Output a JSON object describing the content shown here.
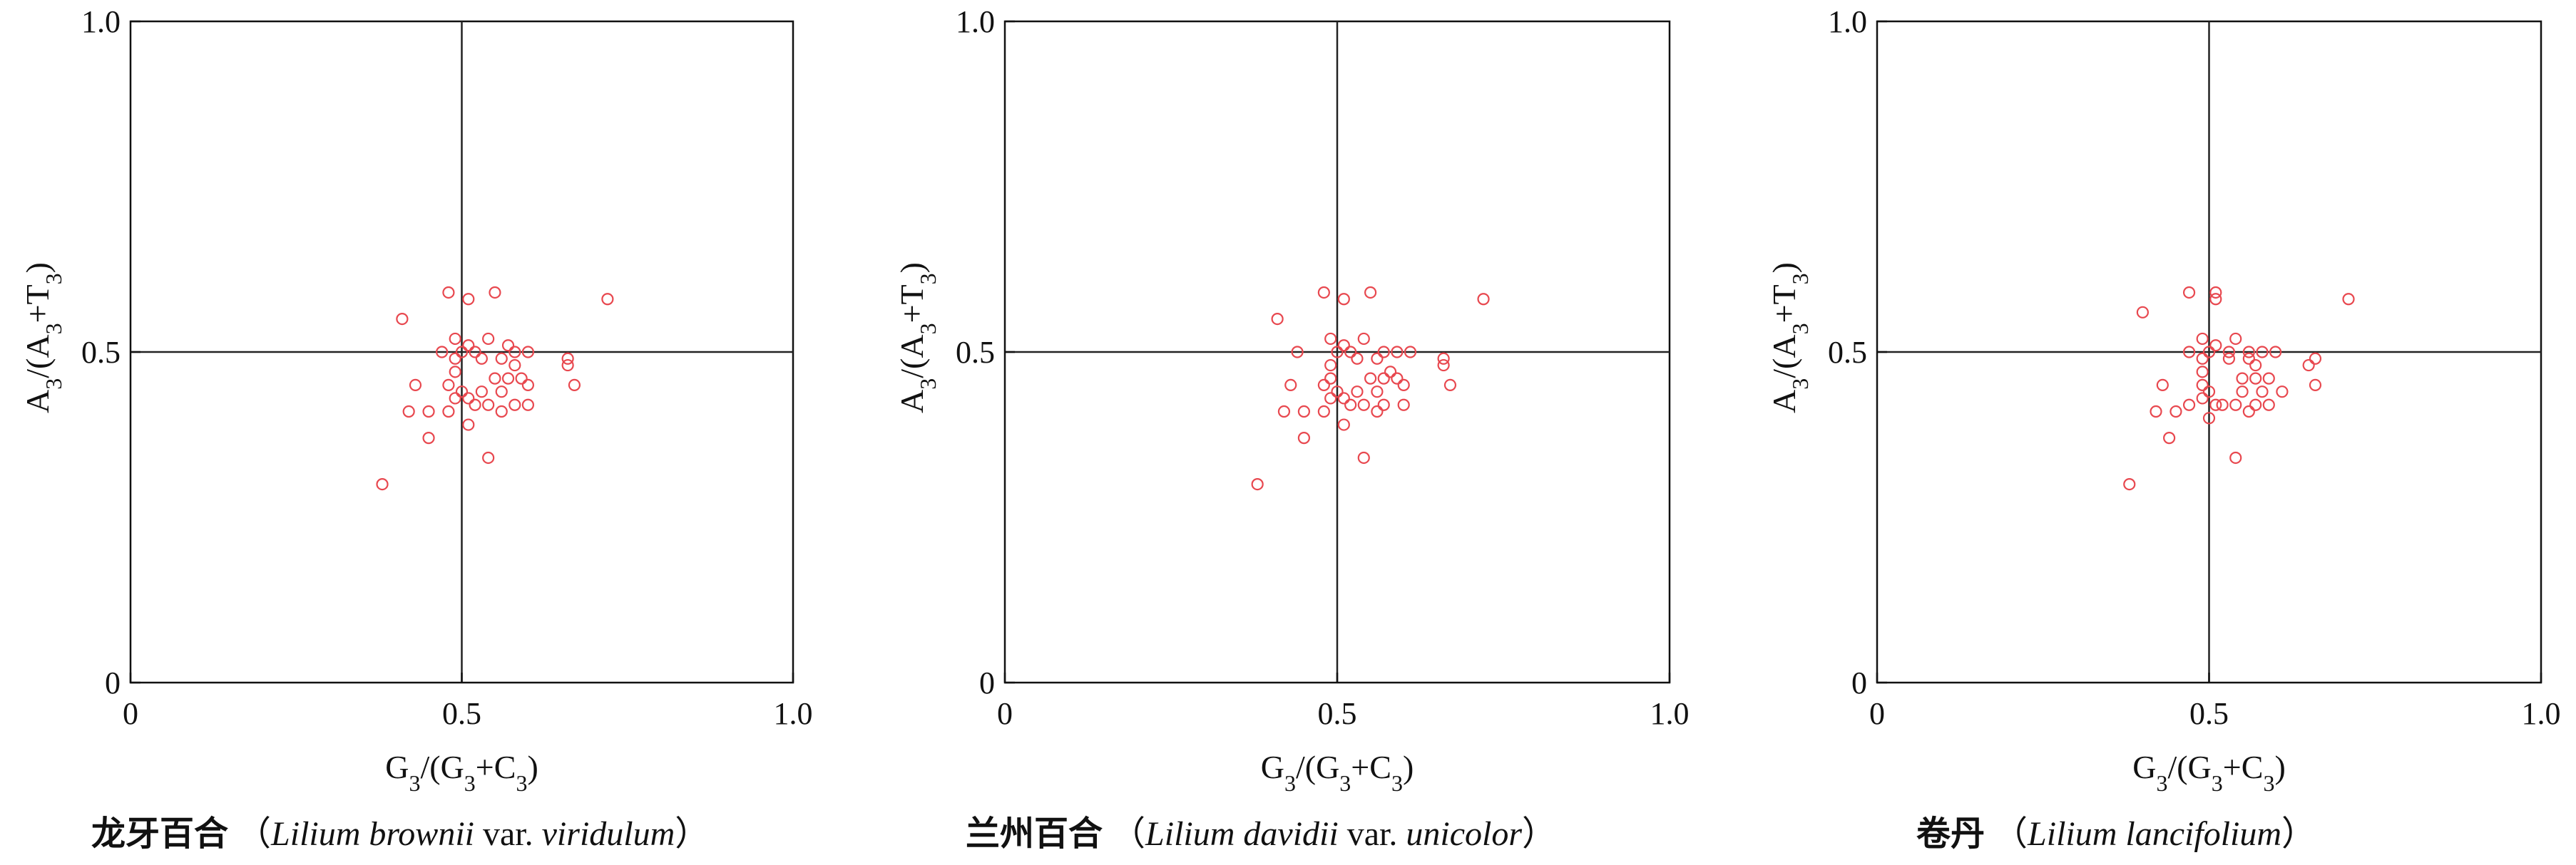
{
  "chart_data": [
    {
      "type": "scatter",
      "xlabel": "G3/(G3+C3)",
      "ylabel": "A3/(A3+T3)",
      "xlim": [
        0,
        1.0
      ],
      "ylim": [
        0,
        1.0
      ],
      "grid": false,
      "reference_lines": {
        "x": 0.5,
        "y": 0.5
      },
      "x_ticks": [
        "0",
        "0.5",
        "1.0"
      ],
      "y_ticks": [
        "0",
        "0.5",
        "1.0"
      ],
      "caption": {
        "cn": "龙牙百合",
        "open": "（",
        "latin1": "Lilium brownii",
        "mid": " var. ",
        "latin2": "viridulum",
        "close": "）"
      },
      "color": "#e8484f",
      "points": [
        [
          0.41,
          0.55
        ],
        [
          0.48,
          0.59
        ],
        [
          0.51,
          0.58
        ],
        [
          0.55,
          0.59
        ],
        [
          0.72,
          0.58
        ],
        [
          0.49,
          0.52
        ],
        [
          0.51,
          0.51
        ],
        [
          0.54,
          0.52
        ],
        [
          0.47,
          0.5
        ],
        [
          0.5,
          0.5
        ],
        [
          0.52,
          0.5
        ],
        [
          0.57,
          0.51
        ],
        [
          0.58,
          0.5
        ],
        [
          0.6,
          0.5
        ],
        [
          0.66,
          0.49
        ],
        [
          0.49,
          0.49
        ],
        [
          0.53,
          0.49
        ],
        [
          0.56,
          0.49
        ],
        [
          0.58,
          0.48
        ],
        [
          0.66,
          0.48
        ],
        [
          0.49,
          0.47
        ],
        [
          0.55,
          0.46
        ],
        [
          0.57,
          0.46
        ],
        [
          0.59,
          0.46
        ],
        [
          0.67,
          0.45
        ],
        [
          0.43,
          0.45
        ],
        [
          0.48,
          0.45
        ],
        [
          0.5,
          0.44
        ],
        [
          0.53,
          0.44
        ],
        [
          0.56,
          0.44
        ],
        [
          0.6,
          0.45
        ],
        [
          0.49,
          0.43
        ],
        [
          0.51,
          0.43
        ],
        [
          0.54,
          0.42
        ],
        [
          0.58,
          0.42
        ],
        [
          0.6,
          0.42
        ],
        [
          0.42,
          0.41
        ],
        [
          0.45,
          0.41
        ],
        [
          0.48,
          0.41
        ],
        [
          0.52,
          0.42
        ],
        [
          0.56,
          0.41
        ],
        [
          0.51,
          0.39
        ],
        [
          0.45,
          0.37
        ],
        [
          0.54,
          0.34
        ],
        [
          0.38,
          0.3
        ]
      ]
    },
    {
      "type": "scatter",
      "xlabel": "G3/(G3+C3)",
      "ylabel": "A3/(A3+T3)",
      "xlim": [
        0,
        1.0
      ],
      "ylim": [
        0,
        1.0
      ],
      "grid": false,
      "reference_lines": {
        "x": 0.5,
        "y": 0.5
      },
      "x_ticks": [
        "0",
        "0.5",
        "1.0"
      ],
      "y_ticks": [
        "0",
        "0.5",
        "1.0"
      ],
      "caption": {
        "cn": "兰州百合",
        "open": "（",
        "latin1": "Lilium davidii",
        "mid": " var. ",
        "latin2": "unicolor",
        "close": "）"
      },
      "color": "#e8484f",
      "points": [
        [
          0.41,
          0.55
        ],
        [
          0.48,
          0.59
        ],
        [
          0.51,
          0.58
        ],
        [
          0.55,
          0.59
        ],
        [
          0.72,
          0.58
        ],
        [
          0.49,
          0.52
        ],
        [
          0.51,
          0.51
        ],
        [
          0.54,
          0.52
        ],
        [
          0.44,
          0.5
        ],
        [
          0.5,
          0.5
        ],
        [
          0.52,
          0.5
        ],
        [
          0.57,
          0.5
        ],
        [
          0.59,
          0.5
        ],
        [
          0.61,
          0.5
        ],
        [
          0.66,
          0.49
        ],
        [
          0.49,
          0.48
        ],
        [
          0.53,
          0.49
        ],
        [
          0.56,
          0.49
        ],
        [
          0.58,
          0.47
        ],
        [
          0.66,
          0.48
        ],
        [
          0.49,
          0.46
        ],
        [
          0.55,
          0.46
        ],
        [
          0.57,
          0.46
        ],
        [
          0.59,
          0.46
        ],
        [
          0.67,
          0.45
        ],
        [
          0.43,
          0.45
        ],
        [
          0.48,
          0.45
        ],
        [
          0.5,
          0.44
        ],
        [
          0.53,
          0.44
        ],
        [
          0.56,
          0.44
        ],
        [
          0.6,
          0.45
        ],
        [
          0.49,
          0.43
        ],
        [
          0.51,
          0.43
        ],
        [
          0.54,
          0.42
        ],
        [
          0.57,
          0.42
        ],
        [
          0.6,
          0.42
        ],
        [
          0.42,
          0.41
        ],
        [
          0.45,
          0.41
        ],
        [
          0.48,
          0.41
        ],
        [
          0.52,
          0.42
        ],
        [
          0.56,
          0.41
        ],
        [
          0.51,
          0.39
        ],
        [
          0.45,
          0.37
        ],
        [
          0.54,
          0.34
        ],
        [
          0.38,
          0.3
        ]
      ]
    },
    {
      "type": "scatter",
      "xlabel": "G3/(G3+C3)",
      "ylabel": "A3/(A3+T3)",
      "xlim": [
        0,
        1.0
      ],
      "ylim": [
        0,
        1.0
      ],
      "grid": false,
      "reference_lines": {
        "x": 0.5,
        "y": 0.5
      },
      "x_ticks": [
        "0",
        "0.5",
        "1.0"
      ],
      "y_ticks": [
        "0",
        "0.5",
        "1.0"
      ],
      "caption": {
        "cn": "卷丹",
        "open": "（",
        "latin1": "Lilium lancifolium",
        "mid": "",
        "latin2": "",
        "close": "）"
      },
      "color": "#e8484f",
      "points": [
        [
          0.4,
          0.56
        ],
        [
          0.47,
          0.59
        ],
        [
          0.51,
          0.59
        ],
        [
          0.51,
          0.58
        ],
        [
          0.71,
          0.58
        ],
        [
          0.49,
          0.52
        ],
        [
          0.51,
          0.51
        ],
        [
          0.54,
          0.52
        ],
        [
          0.47,
          0.5
        ],
        [
          0.5,
          0.5
        ],
        [
          0.53,
          0.5
        ],
        [
          0.56,
          0.5
        ],
        [
          0.58,
          0.5
        ],
        [
          0.6,
          0.5
        ],
        [
          0.66,
          0.49
        ],
        [
          0.49,
          0.49
        ],
        [
          0.53,
          0.49
        ],
        [
          0.56,
          0.49
        ],
        [
          0.57,
          0.48
        ],
        [
          0.65,
          0.48
        ],
        [
          0.49,
          0.47
        ],
        [
          0.55,
          0.46
        ],
        [
          0.57,
          0.46
        ],
        [
          0.59,
          0.46
        ],
        [
          0.66,
          0.45
        ],
        [
          0.43,
          0.45
        ],
        [
          0.49,
          0.45
        ],
        [
          0.5,
          0.44
        ],
        [
          0.55,
          0.44
        ],
        [
          0.58,
          0.44
        ],
        [
          0.61,
          0.44
        ],
        [
          0.49,
          0.43
        ],
        [
          0.51,
          0.42
        ],
        [
          0.54,
          0.42
        ],
        [
          0.57,
          0.42
        ],
        [
          0.59,
          0.42
        ],
        [
          0.42,
          0.41
        ],
        [
          0.45,
          0.41
        ],
        [
          0.47,
          0.42
        ],
        [
          0.52,
          0.42
        ],
        [
          0.56,
          0.41
        ],
        [
          0.5,
          0.4
        ],
        [
          0.44,
          0.37
        ],
        [
          0.54,
          0.34
        ],
        [
          0.38,
          0.3
        ]
      ]
    }
  ]
}
